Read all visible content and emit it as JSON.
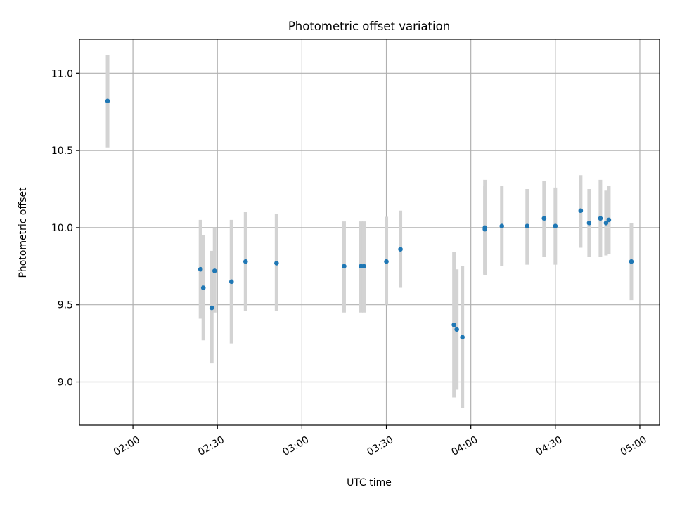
{
  "chart_data": {
    "type": "scatter",
    "title": "Photometric offset variation",
    "xlabel": "UTC time",
    "ylabel": "Photometric offset",
    "xlim": [
      "01:41",
      "05:07"
    ],
    "ylim": [
      8.72,
      11.22
    ],
    "xticks": [
      "02:00",
      "02:30",
      "03:00",
      "03:30",
      "04:00",
      "04:30",
      "05:00"
    ],
    "yticks": [
      9.0,
      9.5,
      10.0,
      10.5,
      11.0
    ],
    "ytick_labels": [
      "9.0",
      "9.5",
      "10.0",
      "10.5",
      "11.0"
    ],
    "grid": true,
    "series": [
      {
        "color": "#1f77b4",
        "error_color": "#d3d3d3",
        "points": [
          {
            "x": "01:51",
            "y": 10.82,
            "ymin": 10.52,
            "ymax": 11.12
          },
          {
            "x": "02:24",
            "y": 9.73,
            "ymin": 9.41,
            "ymax": 10.05
          },
          {
            "x": "02:25",
            "y": 9.61,
            "ymin": 9.27,
            "ymax": 9.95
          },
          {
            "x": "02:28",
            "y": 9.48,
            "ymin": 9.12,
            "ymax": 9.85
          },
          {
            "x": "02:29",
            "y": 9.72,
            "ymin": 9.45,
            "ymax": 10.0
          },
          {
            "x": "02:35",
            "y": 9.65,
            "ymin": 9.25,
            "ymax": 10.05
          },
          {
            "x": "02:40",
            "y": 9.78,
            "ymin": 9.46,
            "ymax": 10.1
          },
          {
            "x": "02:51",
            "y": 9.77,
            "ymin": 9.46,
            "ymax": 10.09
          },
          {
            "x": "03:15",
            "y": 9.75,
            "ymin": 9.45,
            "ymax": 10.04
          },
          {
            "x": "03:21",
            "y": 9.75,
            "ymin": 9.45,
            "ymax": 10.04
          },
          {
            "x": "03:22",
            "y": 9.75,
            "ymin": 9.45,
            "ymax": 10.04
          },
          {
            "x": "03:30",
            "y": 9.78,
            "ymin": 9.5,
            "ymax": 10.07
          },
          {
            "x": "03:35",
            "y": 9.86,
            "ymin": 9.61,
            "ymax": 10.11
          },
          {
            "x": "03:54",
            "y": 9.37,
            "ymin": 8.9,
            "ymax": 9.84
          },
          {
            "x": "03:55",
            "y": 9.34,
            "ymin": 8.95,
            "ymax": 9.73
          },
          {
            "x": "03:57",
            "y": 9.29,
            "ymin": 8.83,
            "ymax": 9.75
          },
          {
            "x": "04:05",
            "y": 10.0,
            "ymin": 9.69,
            "ymax": 10.31
          },
          {
            "x": "04:05",
            "y": 9.99,
            "ymin": 9.7,
            "ymax": 10.27
          },
          {
            "x": "04:11",
            "y": 10.01,
            "ymin": 9.75,
            "ymax": 10.27
          },
          {
            "x": "04:20",
            "y": 10.01,
            "ymin": 9.76,
            "ymax": 10.25
          },
          {
            "x": "04:26",
            "y": 10.06,
            "ymin": 9.81,
            "ymax": 10.3
          },
          {
            "x": "04:30",
            "y": 10.01,
            "ymin": 9.76,
            "ymax": 10.26
          },
          {
            "x": "04:39",
            "y": 10.11,
            "ymin": 9.87,
            "ymax": 10.34
          },
          {
            "x": "04:42",
            "y": 10.03,
            "ymin": 9.81,
            "ymax": 10.25
          },
          {
            "x": "04:46",
            "y": 10.06,
            "ymin": 9.81,
            "ymax": 10.31
          },
          {
            "x": "04:48",
            "y": 10.03,
            "ymin": 9.82,
            "ymax": 10.24
          },
          {
            "x": "04:49",
            "y": 10.05,
            "ymin": 9.83,
            "ymax": 10.27
          },
          {
            "x": "04:57",
            "y": 9.78,
            "ymin": 9.53,
            "ymax": 10.03
          }
        ]
      }
    ]
  }
}
